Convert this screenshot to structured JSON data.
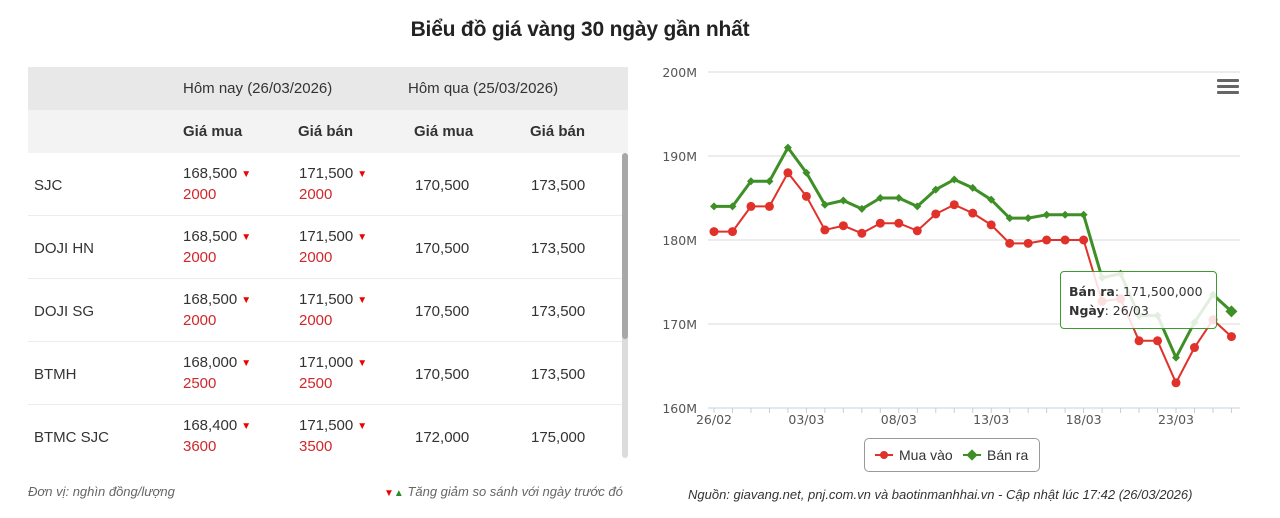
{
  "title": "Biểu đồ giá vàng 30 ngày gần nhất",
  "table": {
    "header_today": "Hôm nay (26/03/2026)",
    "header_yesterday": "Hôm qua (25/03/2026)",
    "col_buy": "Giá mua",
    "col_sell": "Giá bán",
    "rows": [
      {
        "name": "SJC",
        "buy": "168,500",
        "buy_change": "2000",
        "sell": "171,500",
        "sell_change": "2000",
        "prev_buy": "170,500",
        "prev_sell": "173,500",
        "direction": "down"
      },
      {
        "name": "DOJI HN",
        "buy": "168,500",
        "buy_change": "2000",
        "sell": "171,500",
        "sell_change": "2000",
        "prev_buy": "170,500",
        "prev_sell": "173,500",
        "direction": "down"
      },
      {
        "name": "DOJI SG",
        "buy": "168,500",
        "buy_change": "2000",
        "sell": "171,500",
        "sell_change": "2000",
        "prev_buy": "170,500",
        "prev_sell": "173,500",
        "direction": "down"
      },
      {
        "name": "BTMH",
        "buy": "168,000",
        "buy_change": "2500",
        "sell": "171,000",
        "sell_change": "2500",
        "prev_buy": "170,500",
        "prev_sell": "173,500",
        "direction": "down"
      },
      {
        "name": "BTMC SJC",
        "buy": "168,400",
        "buy_change": "3600",
        "sell": "171,500",
        "sell_change": "3500",
        "prev_buy": "172,000",
        "prev_sell": "175,000",
        "direction": "down"
      }
    ],
    "down_arrow": "▼",
    "up_arrow": "▲"
  },
  "footer": {
    "unit": "Đơn vị: nghìn đồng/lượng",
    "legend_note": "Tăng giảm so sánh với ngày trước đó",
    "source": "Nguồn: giavang.net, pnj.com.vn và baotinmanhhai.vn - Cập nhật lúc 17:42 (26/03/2026)"
  },
  "tooltip": {
    "series_label": "Bán ra",
    "value": ": 171,500,000",
    "date_label": "Ngày",
    "date": ": 26/03"
  },
  "colors": {
    "buy": "#e0312a",
    "sell": "#3d8f26",
    "down": "#e00000",
    "up": "#2a8a2a"
  },
  "chart_data": {
    "type": "line",
    "title": "Biểu đồ giá vàng 30 ngày gần nhất",
    "xlabel": "",
    "ylabel": "",
    "ylim": [
      160000000,
      200000000
    ],
    "y_ticks": [
      "160M",
      "170M",
      "180M",
      "190M",
      "200M"
    ],
    "x_tick_labels": [
      "26/02",
      "03/03",
      "08/03",
      "13/03",
      "18/03",
      "23/03"
    ],
    "grid": true,
    "legend_position": "bottom",
    "x": [
      "26/02",
      "27/02",
      "28/02",
      "01/03",
      "02/03",
      "03/03",
      "04/03",
      "05/03",
      "06/03",
      "07/03",
      "08/03",
      "09/03",
      "10/03",
      "11/03",
      "12/03",
      "13/03",
      "14/03",
      "15/03",
      "16/03",
      "17/03",
      "18/03",
      "19/03",
      "20/03",
      "21/03",
      "22/03",
      "23/03",
      "24/03",
      "25/03",
      "26/03"
    ],
    "series": [
      {
        "name": "Mua vào",
        "marker": "circle",
        "values": [
          181.0,
          181.0,
          184.0,
          184.0,
          188.0,
          185.2,
          181.2,
          181.7,
          180.8,
          182.0,
          182.0,
          181.1,
          183.1,
          184.2,
          183.2,
          181.8,
          179.6,
          179.6,
          180.0,
          180.0,
          180.0,
          172.7,
          173.0,
          168.0,
          168.0,
          163.0,
          167.2,
          170.5,
          168.5
        ]
      },
      {
        "name": "Bán ra",
        "marker": "diamond",
        "values": [
          184.0,
          184.0,
          187.0,
          187.0,
          191.0,
          188.0,
          184.2,
          184.7,
          183.7,
          185.0,
          185.0,
          184.0,
          186.0,
          187.2,
          186.2,
          184.8,
          182.6,
          182.6,
          183.0,
          183.0,
          183.0,
          175.5,
          176.0,
          171.0,
          171.0,
          166.0,
          170.2,
          173.5,
          171.5
        ]
      }
    ],
    "units": "million VND",
    "tooltip": {
      "series": "Bán ra",
      "value": 171500000,
      "date": "26/03"
    }
  }
}
